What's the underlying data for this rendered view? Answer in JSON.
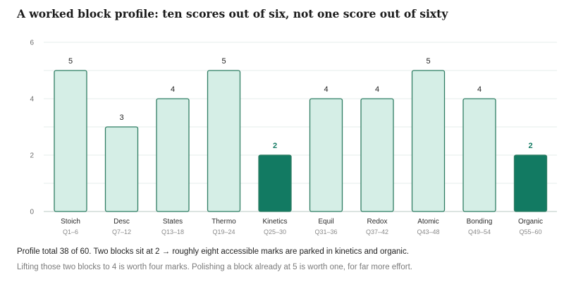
{
  "title": "A worked block profile: ten scores out of six, not one score out of sixty",
  "chart_data": {
    "type": "bar",
    "categories": [
      "Stoich",
      "Desc",
      "States",
      "Thermo",
      "Kinetics",
      "Equil",
      "Redox",
      "Atomic",
      "Bonding",
      "Organic"
    ],
    "subcategories": [
      "Q1–6",
      "Q7–12",
      "Q13–18",
      "Q19–24",
      "Q25–30",
      "Q31–36",
      "Q37–42",
      "Q43–48",
      "Q49–54",
      "Q55–60"
    ],
    "values": [
      5,
      3,
      4,
      5,
      2,
      4,
      4,
      5,
      4,
      2
    ],
    "highlighted": [
      false,
      false,
      false,
      false,
      true,
      false,
      false,
      false,
      false,
      true
    ],
    "ylim": [
      0,
      6
    ],
    "yticks": [
      0,
      2,
      4,
      6
    ],
    "grid": true,
    "colors": {
      "bar_fill": "#d5eee6",
      "bar_stroke": "#2f7d63",
      "highlight_fill": "#127a62",
      "highlight_label": "#127a62",
      "grid": "#e6eeeb"
    }
  },
  "notes": {
    "line1": "Profile total 38 of 60. Two blocks sit at 2 → roughly eight accessible marks are parked in kinetics and organic.",
    "line2": "Lifting those two blocks to 4 is worth four marks. Polishing a block already at 5 is worth one, for far more effort."
  }
}
